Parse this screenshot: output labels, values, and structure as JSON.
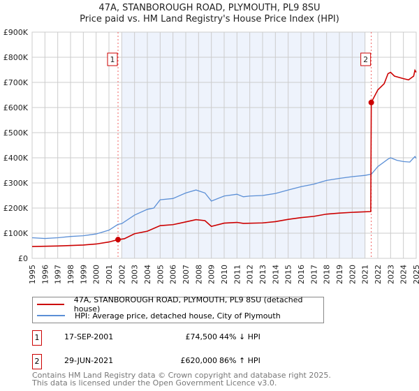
{
  "chart_data": {
    "type": "line",
    "title": "47A, STANBOROUGH ROAD, PLYMOUTH, PL9 8SU",
    "subtitle": "Price paid vs. HM Land Registry's House Price Index (HPI)",
    "xlim": [
      1995,
      2025
    ],
    "ylim": [
      0,
      900000
    ],
    "y_ticks": [
      {
        "v": 0,
        "label": "£0"
      },
      {
        "v": 100000,
        "label": "£100K"
      },
      {
        "v": 200000,
        "label": "£200K"
      },
      {
        "v": 300000,
        "label": "£300K"
      },
      {
        "v": 400000,
        "label": "£400K"
      },
      {
        "v": 500000,
        "label": "£500K"
      },
      {
        "v": 600000,
        "label": "£600K"
      },
      {
        "v": 700000,
        "label": "£700K"
      },
      {
        "v": 800000,
        "label": "£800K"
      },
      {
        "v": 900000,
        "label": "£900K"
      }
    ],
    "x_ticks": [
      "1995",
      "1996",
      "1997",
      "1998",
      "1999",
      "2000",
      "2001",
      "2002",
      "2003",
      "2004",
      "2005",
      "2006",
      "2007",
      "2008",
      "2009",
      "2010",
      "2011",
      "2012",
      "2013",
      "2014",
      "2015",
      "2016",
      "2017",
      "2018",
      "2019",
      "2020",
      "2021",
      "2022",
      "2023",
      "2024",
      "2025"
    ],
    "grid": true,
    "shaded_range": [
      2002,
      2021
    ],
    "series": [
      {
        "name": "47A, STANBOROUGH ROAD, PLYMOUTH, PL9 8SU (detached house)",
        "color": "#cc0000",
        "x": [
          1995,
          1997,
          1999,
          2000,
          2001,
          2001.71,
          2002.2,
          2003,
          2004,
          2005,
          2006,
          2007,
          2007.8,
          2008.5,
          2009,
          2010,
          2011,
          2011.5,
          2013,
          2014,
          2015,
          2016,
          2017,
          2018,
          2019,
          2020,
          2021.45,
          2021.49,
          2022,
          2022.5,
          2022.8,
          2023,
          2023.3,
          2024,
          2024.4,
          2024.8,
          2024.9,
          2025
        ],
        "y": [
          47000,
          49000,
          53000,
          57000,
          65000,
          74500,
          78000,
          98000,
          108000,
          130000,
          134000,
          145000,
          154000,
          150000,
          127000,
          140000,
          143000,
          139000,
          141000,
          146000,
          155000,
          162000,
          167000,
          176000,
          180000,
          183000,
          186000,
          620000,
          670000,
          695000,
          735000,
          740000,
          725000,
          715000,
          710000,
          725000,
          748000,
          740000
        ]
      },
      {
        "name": "HPI: Average price, detached house, City of Plymouth",
        "color": "#5b8fd6",
        "x": [
          1995,
          1996,
          1997,
          1998,
          1999,
          2000,
          2001,
          2001.7,
          2002,
          2003,
          2004,
          2004.5,
          2005,
          2006,
          2007,
          2007.8,
          2008.5,
          2009,
          2010,
          2011,
          2011.5,
          2012,
          2013,
          2014,
          2015,
          2016,
          2017,
          2018,
          2019,
          2020,
          2021,
          2021.5,
          2022,
          2022.8,
          2023,
          2023.5,
          2024,
          2024.5,
          2024.9,
          2025
        ],
        "y": [
          82000,
          79000,
          82000,
          87000,
          90000,
          97000,
          112000,
          135000,
          138000,
          172000,
          195000,
          200000,
          233000,
          238000,
          260000,
          272000,
          260000,
          228000,
          248000,
          255000,
          245000,
          248000,
          250000,
          258000,
          272000,
          285000,
          295000,
          310000,
          318000,
          325000,
          330000,
          335000,
          365000,
          395000,
          400000,
          390000,
          385000,
          383000,
          405000,
          398000
        ]
      }
    ],
    "sales": [
      {
        "label": "1",
        "x": 2001.71,
        "y": 74500
      },
      {
        "label": "2",
        "x": 2021.49,
        "y": 620000
      }
    ]
  },
  "legend": {
    "items": [
      "47A, STANBOROUGH ROAD, PLYMOUTH, PL9 8SU (detached house)",
      "HPI: Average price, detached house, City of Plymouth"
    ]
  },
  "transactions": [
    {
      "num": "1",
      "date": "17-SEP-2001",
      "price": "£74,500",
      "hpi": "44% ↓ HPI"
    },
    {
      "num": "2",
      "date": "29-JUN-2021",
      "price": "£620,000",
      "hpi": "86% ↑ HPI"
    }
  ],
  "footer": {
    "line1": "Contains HM Land Registry data © Crown copyright and database right 2025.",
    "line2": "This data is licensed under the Open Government Licence v3.0."
  }
}
